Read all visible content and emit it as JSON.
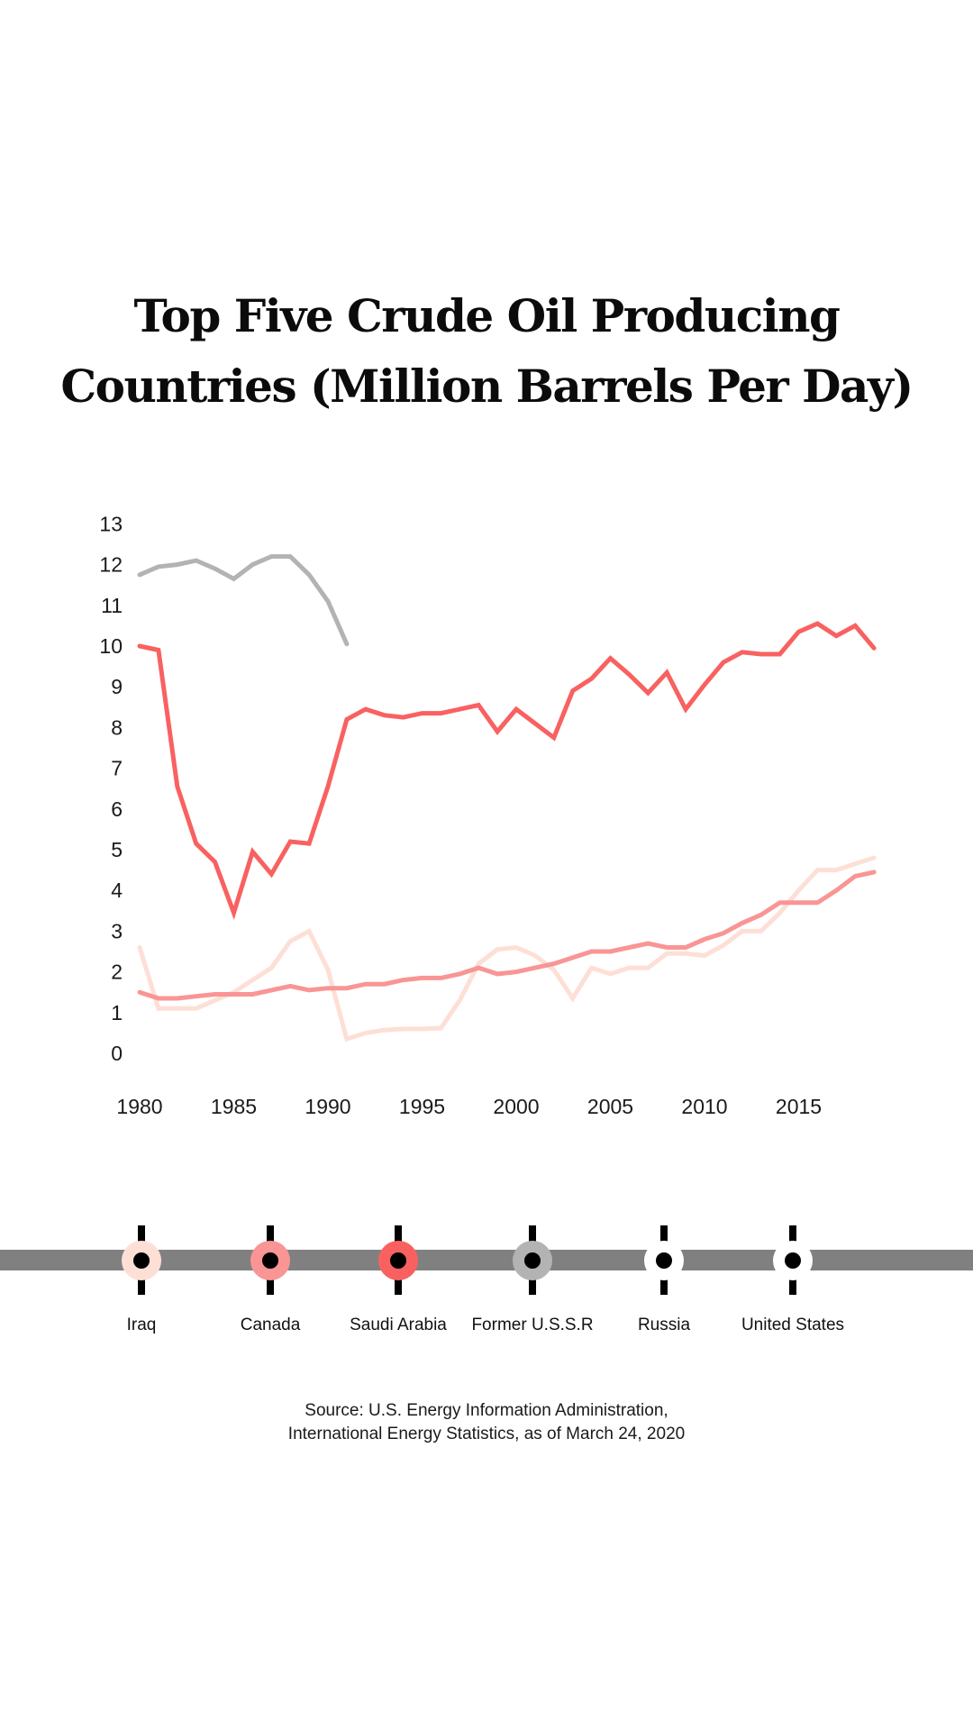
{
  "title": {
    "line1": "Top Five Crude Oil Producing",
    "line2": "Countries (Million Barrels Per Day)"
  },
  "chart_data": {
    "type": "line",
    "title": "Top Five Crude Oil Producing Countries (Million Barrels Per Day)",
    "xlabel": "",
    "ylabel": "",
    "xlim": [
      1980,
      2019
    ],
    "ylim": [
      0,
      13
    ],
    "grid": false,
    "legend_position": "bottom",
    "x_ticks": [
      "1980",
      "1985",
      "1990",
      "1995",
      "2000",
      "2005",
      "2010",
      "2015"
    ],
    "y_ticks": [
      "0",
      "1",
      "2",
      "3",
      "4",
      "5",
      "6",
      "7",
      "8",
      "9",
      "10",
      "11",
      "12",
      "13"
    ],
    "series": [
      {
        "name": "Former U.S.S.R",
        "color": "#b3b3b3",
        "x": [
          1980,
          1981,
          1982,
          1983,
          1984,
          1985,
          1986,
          1987,
          1988,
          1989,
          1990,
          1991
        ],
        "values": [
          11.75,
          11.95,
          12.0,
          12.1,
          11.9,
          11.65,
          12.0,
          12.2,
          12.2,
          11.75,
          11.1,
          10.05
        ]
      },
      {
        "name": "Saudi Arabia",
        "color": "#f96161",
        "x": [
          1980,
          1981,
          1982,
          1983,
          1984,
          1985,
          1986,
          1987,
          1988,
          1989,
          1990,
          1991,
          1992,
          1993,
          1994,
          1995,
          1996,
          1997,
          1998,
          1999,
          2000,
          2001,
          2002,
          2003,
          2004,
          2005,
          2006,
          2007,
          2008,
          2009,
          2010,
          2011,
          2012,
          2013,
          2014,
          2015,
          2016,
          2017,
          2018,
          2019
        ],
        "values": [
          10.0,
          9.9,
          6.55,
          5.15,
          4.7,
          3.45,
          4.95,
          4.4,
          5.2,
          5.15,
          6.55,
          8.2,
          8.45,
          8.3,
          8.25,
          8.35,
          8.35,
          8.45,
          8.55,
          7.9,
          8.45,
          8.1,
          7.75,
          8.9,
          9.2,
          9.7,
          9.3,
          8.85,
          9.35,
          8.45,
          9.05,
          9.6,
          9.85,
          9.8,
          9.8,
          10.35,
          10.55,
          10.25,
          10.5,
          9.95
        ]
      },
      {
        "name": "Canada",
        "color": "#f99595",
        "x": [
          1980,
          1981,
          1982,
          1983,
          1984,
          1985,
          1986,
          1987,
          1988,
          1989,
          1990,
          1991,
          1992,
          1993,
          1994,
          1995,
          1996,
          1997,
          1998,
          1999,
          2000,
          2001,
          2002,
          2003,
          2004,
          2005,
          2006,
          2007,
          2008,
          2009,
          2010,
          2011,
          2012,
          2013,
          2014,
          2015,
          2016,
          2017,
          2018,
          2019
        ],
        "values": [
          1.5,
          1.35,
          1.35,
          1.4,
          1.45,
          1.45,
          1.45,
          1.55,
          1.65,
          1.55,
          1.6,
          1.6,
          1.7,
          1.7,
          1.8,
          1.85,
          1.85,
          1.95,
          2.1,
          1.95,
          2.0,
          2.1,
          2.2,
          2.35,
          2.5,
          2.5,
          2.6,
          2.7,
          2.6,
          2.6,
          2.8,
          2.95,
          3.2,
          3.4,
          3.7,
          3.7,
          3.7,
          4.0,
          4.35,
          4.45
        ]
      },
      {
        "name": "Iraq",
        "color": "#fddfd6",
        "x": [
          1980,
          1981,
          1982,
          1983,
          1984,
          1985,
          1986,
          1987,
          1988,
          1989,
          1990,
          1991,
          1992,
          1993,
          1994,
          1995,
          1996,
          1997,
          1998,
          1999,
          2000,
          2001,
          2002,
          2003,
          2004,
          2005,
          2006,
          2007,
          2008,
          2009,
          2010,
          2011,
          2012,
          2013,
          2014,
          2015,
          2016,
          2017,
          2018,
          2019
        ],
        "values": [
          2.6,
          1.1,
          1.1,
          1.1,
          1.3,
          1.5,
          1.8,
          2.1,
          2.75,
          3.0,
          2.05,
          0.35,
          0.5,
          0.57,
          0.6,
          0.6,
          0.62,
          1.3,
          2.2,
          2.55,
          2.6,
          2.4,
          2.05,
          1.35,
          2.1,
          1.95,
          2.1,
          2.1,
          2.45,
          2.45,
          2.4,
          2.65,
          3.0,
          3.0,
          3.45,
          4.0,
          4.5,
          4.5,
          4.65,
          4.8
        ]
      }
    ]
  },
  "legend": {
    "items": [
      {
        "label": "Iraq",
        "color": "#fddfd6"
      },
      {
        "label": "Canada",
        "color": "#f99595"
      },
      {
        "label": "Saudi Arabia",
        "color": "#f96161"
      },
      {
        "label": "Former U.S.S.R",
        "color": "#b3b3b3"
      },
      {
        "label": "Russia",
        "color": "#ffffff"
      },
      {
        "label": "United States",
        "color": "#ffffff"
      }
    ]
  },
  "source": {
    "line1": "Source: U.S. Energy Information Administration,",
    "line2": "International Energy Statistics, as of March 24, 2020"
  }
}
